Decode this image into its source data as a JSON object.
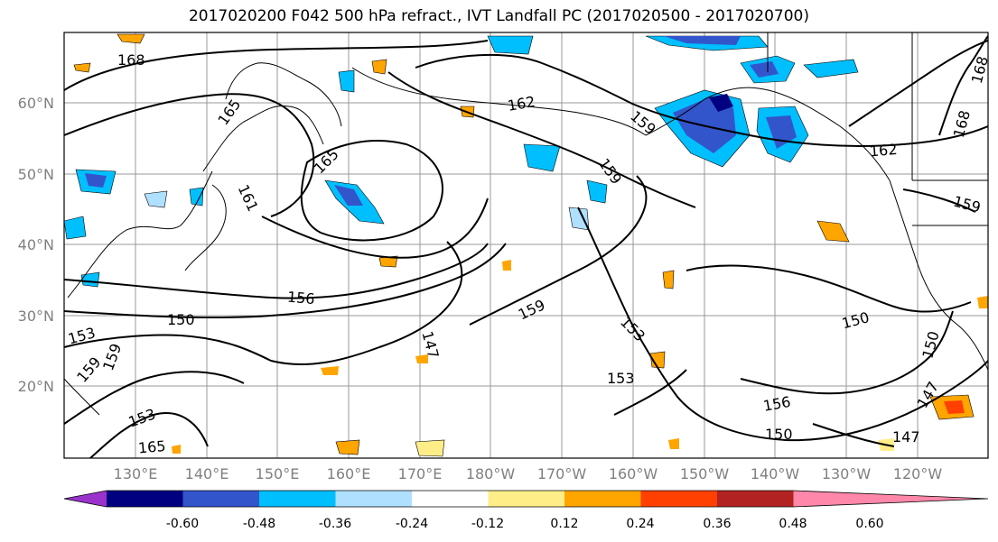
{
  "title": "2017020200 F042 500 hPa refract., IVT Landfall PC (2017020500 - 2017020700)",
  "lat_labels": [
    "60°N",
    "50°N",
    "40°N",
    "30°N",
    "20°N"
  ],
  "lon_labels": [
    "130°E",
    "140°E",
    "150°E",
    "160°E",
    "170°E",
    "180°W",
    "170°W",
    "160°W",
    "150°W",
    "140°W",
    "130°W",
    "120°W"
  ],
  "contour_labels": [
    "168",
    "165",
    "162",
    "159",
    "165",
    "161",
    "159",
    "162",
    "159",
    "156",
    "150",
    "159",
    "153",
    "147",
    "153",
    "153",
    "156",
    "150",
    "150",
    "150",
    "147",
    "147",
    "165",
    "153",
    "159",
    "159",
    "168",
    "168"
  ],
  "colorbar": {
    "ticks": [
      "-0.60",
      "-0.48",
      "-0.36",
      "-0.24",
      "-0.12",
      "0.12",
      "0.24",
      "0.36",
      "0.48",
      "0.60"
    ],
    "colors": [
      "#9933cc",
      "#000080",
      "#3355cc",
      "#00bfff",
      "#b0e0ff",
      "#ffffff",
      "#ffee88",
      "#ffa500",
      "#ff4000",
      "#b22222",
      "#ff88aa"
    ]
  }
}
